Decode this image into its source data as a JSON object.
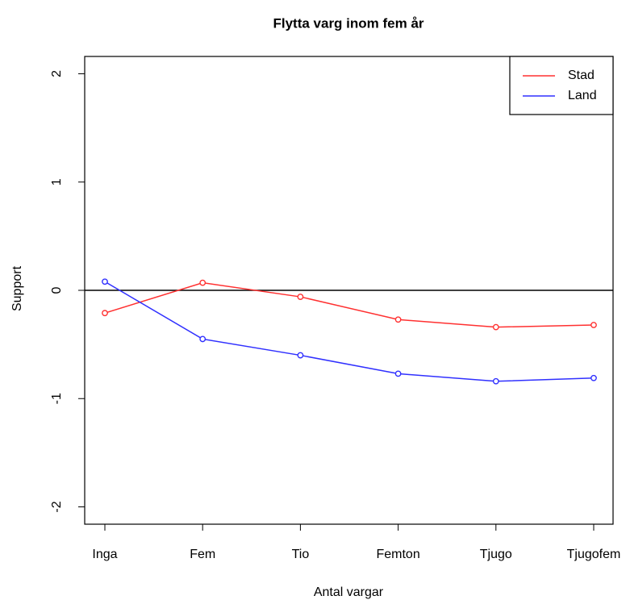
{
  "chart_data": {
    "type": "line",
    "title": "Flytta varg inom fem år",
    "x_label": "Antal vargar",
    "y_label": "Support",
    "categories": [
      "Inga",
      "Fem",
      "Tio",
      "Femton",
      "Tjugo",
      "Tjugofem"
    ],
    "series": [
      {
        "name": "Stad",
        "color": "#ff3030",
        "values": [
          -0.21,
          0.07,
          -0.06,
          -0.27,
          -0.34,
          -0.32
        ]
      },
      {
        "name": "Land",
        "color": "#3030ff",
        "values": [
          0.08,
          -0.45,
          -0.6,
          -0.77,
          -0.84,
          -0.81
        ]
      }
    ],
    "ylim": [
      -2.16,
      2.16
    ],
    "yticks": [
      -2,
      -1,
      0,
      1,
      2
    ],
    "reference_line": 0,
    "legend": "top-right",
    "grid": false
  }
}
